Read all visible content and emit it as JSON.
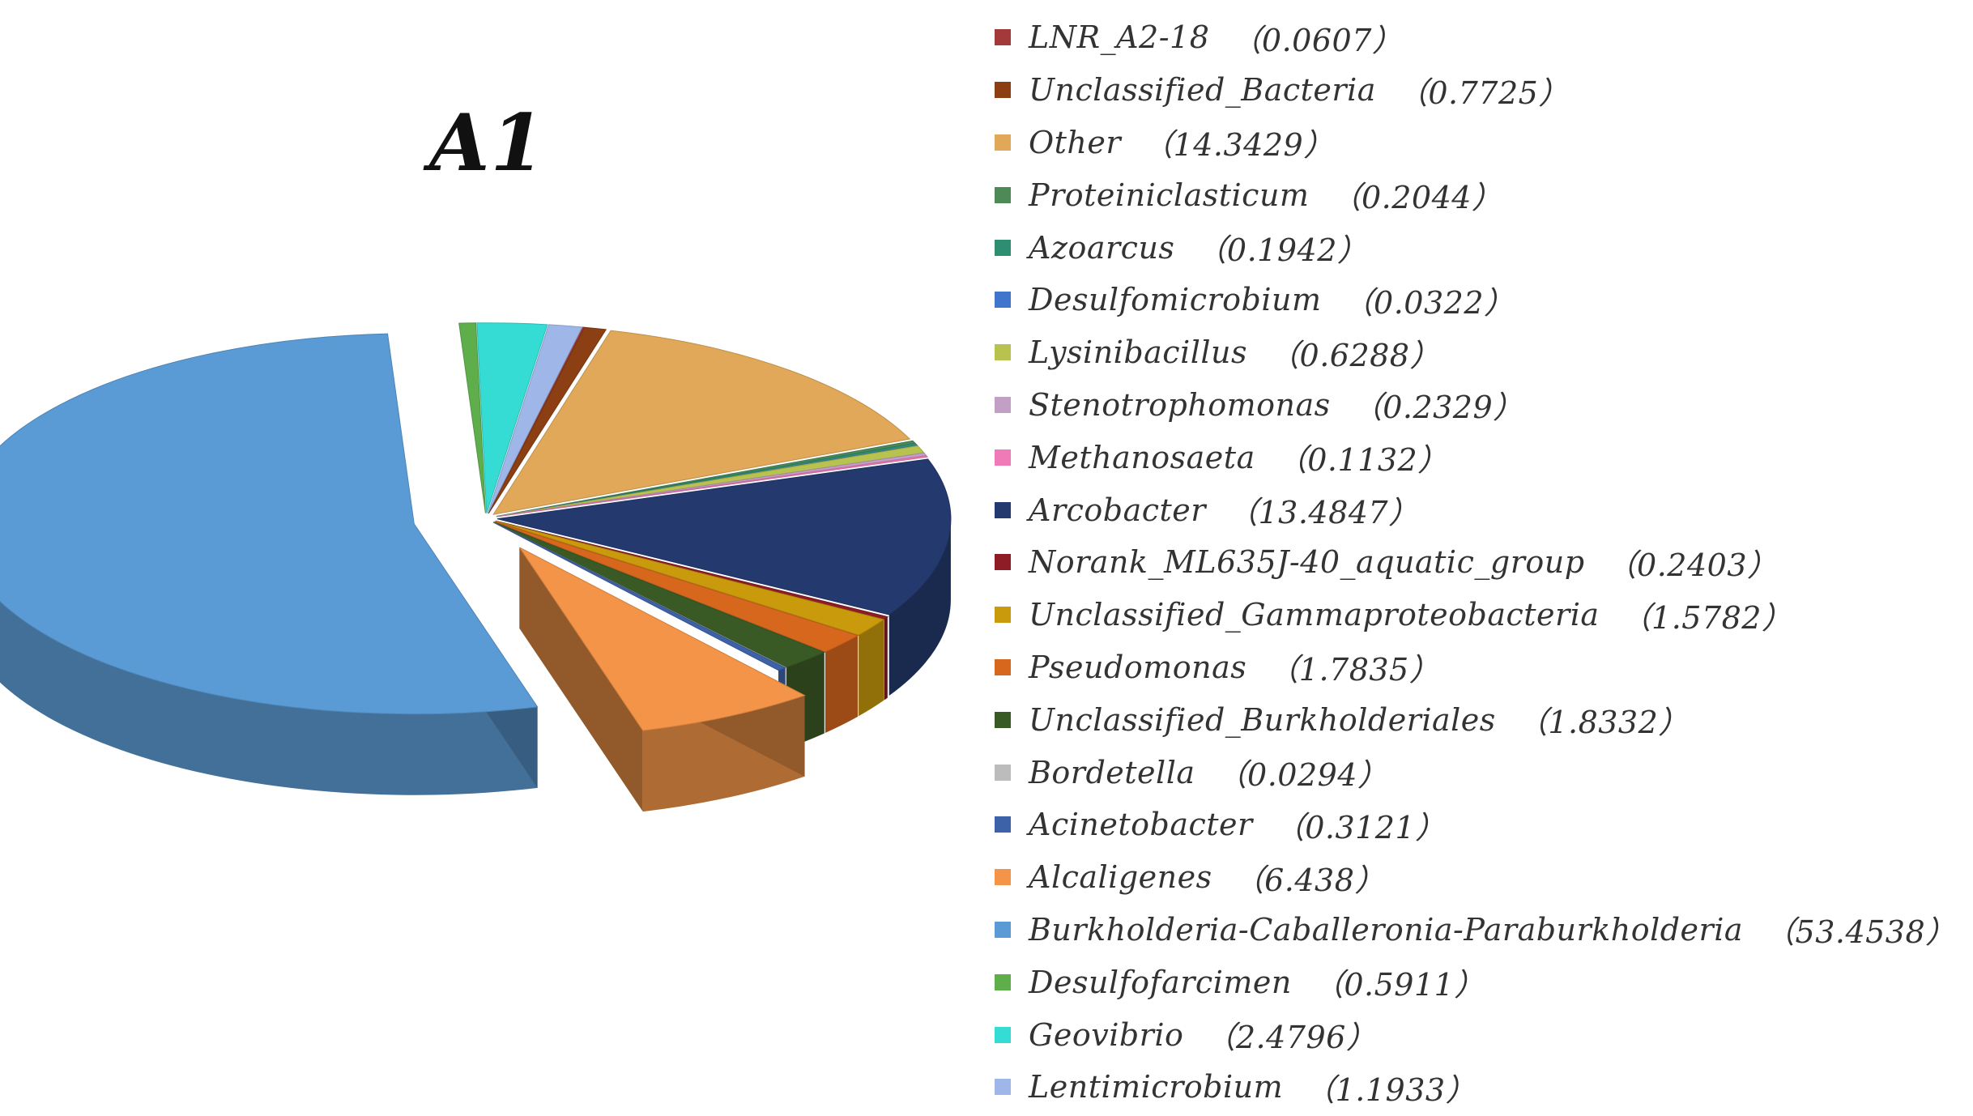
{
  "chart_data": {
    "type": "pie",
    "title": "A1",
    "legend_position": "right",
    "slices": [
      {
        "label": "LNR_A2-18",
        "value": 0.0607,
        "display": "（0.0607）",
        "color": "#a23a3a"
      },
      {
        "label": "Unclassified_Bacteria",
        "value": 0.7725,
        "display": "（0.7725）",
        "color": "#8b3f12"
      },
      {
        "label": "Other",
        "value": 14.3429,
        "display": "（14.3429）",
        "color": "#e0a858"
      },
      {
        "label": "Proteiniclasticum",
        "value": 0.2044,
        "display": "（0.2044）",
        "color": "#4e8a58"
      },
      {
        "label": "Azoarcus",
        "value": 0.1942,
        "display": "（0.1942）",
        "color": "#2d8e72"
      },
      {
        "label": "Desulfomicrobium",
        "value": 0.0322,
        "display": "（0.0322）",
        "color": "#3f75cc"
      },
      {
        "label": "Lysinibacillus",
        "value": 0.6288,
        "display": "（0.6288）",
        "color": "#b8c24e"
      },
      {
        "label": "Stenotrophomonas",
        "value": 0.2329,
        "display": "（0.2329）",
        "color": "#c2a0c6"
      },
      {
        "label": "Methanosaeta",
        "value": 0.1132,
        "display": "（0.1132）",
        "color": "#f07ab8"
      },
      {
        "label": "Arcobacter",
        "value": 13.4847,
        "display": "（13.4847）",
        "color": "#243a6e"
      },
      {
        "label": "Norank_ML635J-40_aquatic_group",
        "value": 0.2403,
        "display": "（0.2403）",
        "color": "#8e1c26"
      },
      {
        "label": "Unclassified_Gammaproteobacteria",
        "value": 1.5782,
        "display": "（1.5782）",
        "color": "#c99a0c"
      },
      {
        "label": "Pseudomonas",
        "value": 1.7835,
        "display": "（1.7835）",
        "color": "#d8671e"
      },
      {
        "label": "Unclassified_Burkholderiales",
        "value": 1.8332,
        "display": "（1.8332）",
        "color": "#3a5a25"
      },
      {
        "label": "Bordetella",
        "value": 0.0294,
        "display": "（0.0294）",
        "color": "#bcbcbc"
      },
      {
        "label": "Acinetobacter",
        "value": 0.3121,
        "display": "（0.3121）",
        "color": "#3e62a8"
      },
      {
        "label": "Alcaligenes",
        "value": 6.438,
        "display": "（6.438）",
        "color": "#f39448"
      },
      {
        "label": "Burkholderia-Caballeronia-Paraburkholderia",
        "value": 53.4538,
        "display": "（53.4538）",
        "color": "#5b9bd5"
      },
      {
        "label": "Desulfofarcimen",
        "value": 0.5911,
        "display": "（0.5911）",
        "color": "#5fae4c"
      },
      {
        "label": "Geovibrio",
        "value": 2.4796,
        "display": "（2.4796）",
        "color": "#34dcd4"
      },
      {
        "label": "Lentimicrobium",
        "value": 1.1933,
        "display": "（1.1933）",
        "color": "#9fb7e8"
      }
    ],
    "pie_start_angle_deg": -78,
    "pie_direction": "clockwise",
    "exploded_slices": [
      "Burkholderia-Caballeronia-Paraburkholderia",
      "Alcaligenes"
    ]
  }
}
